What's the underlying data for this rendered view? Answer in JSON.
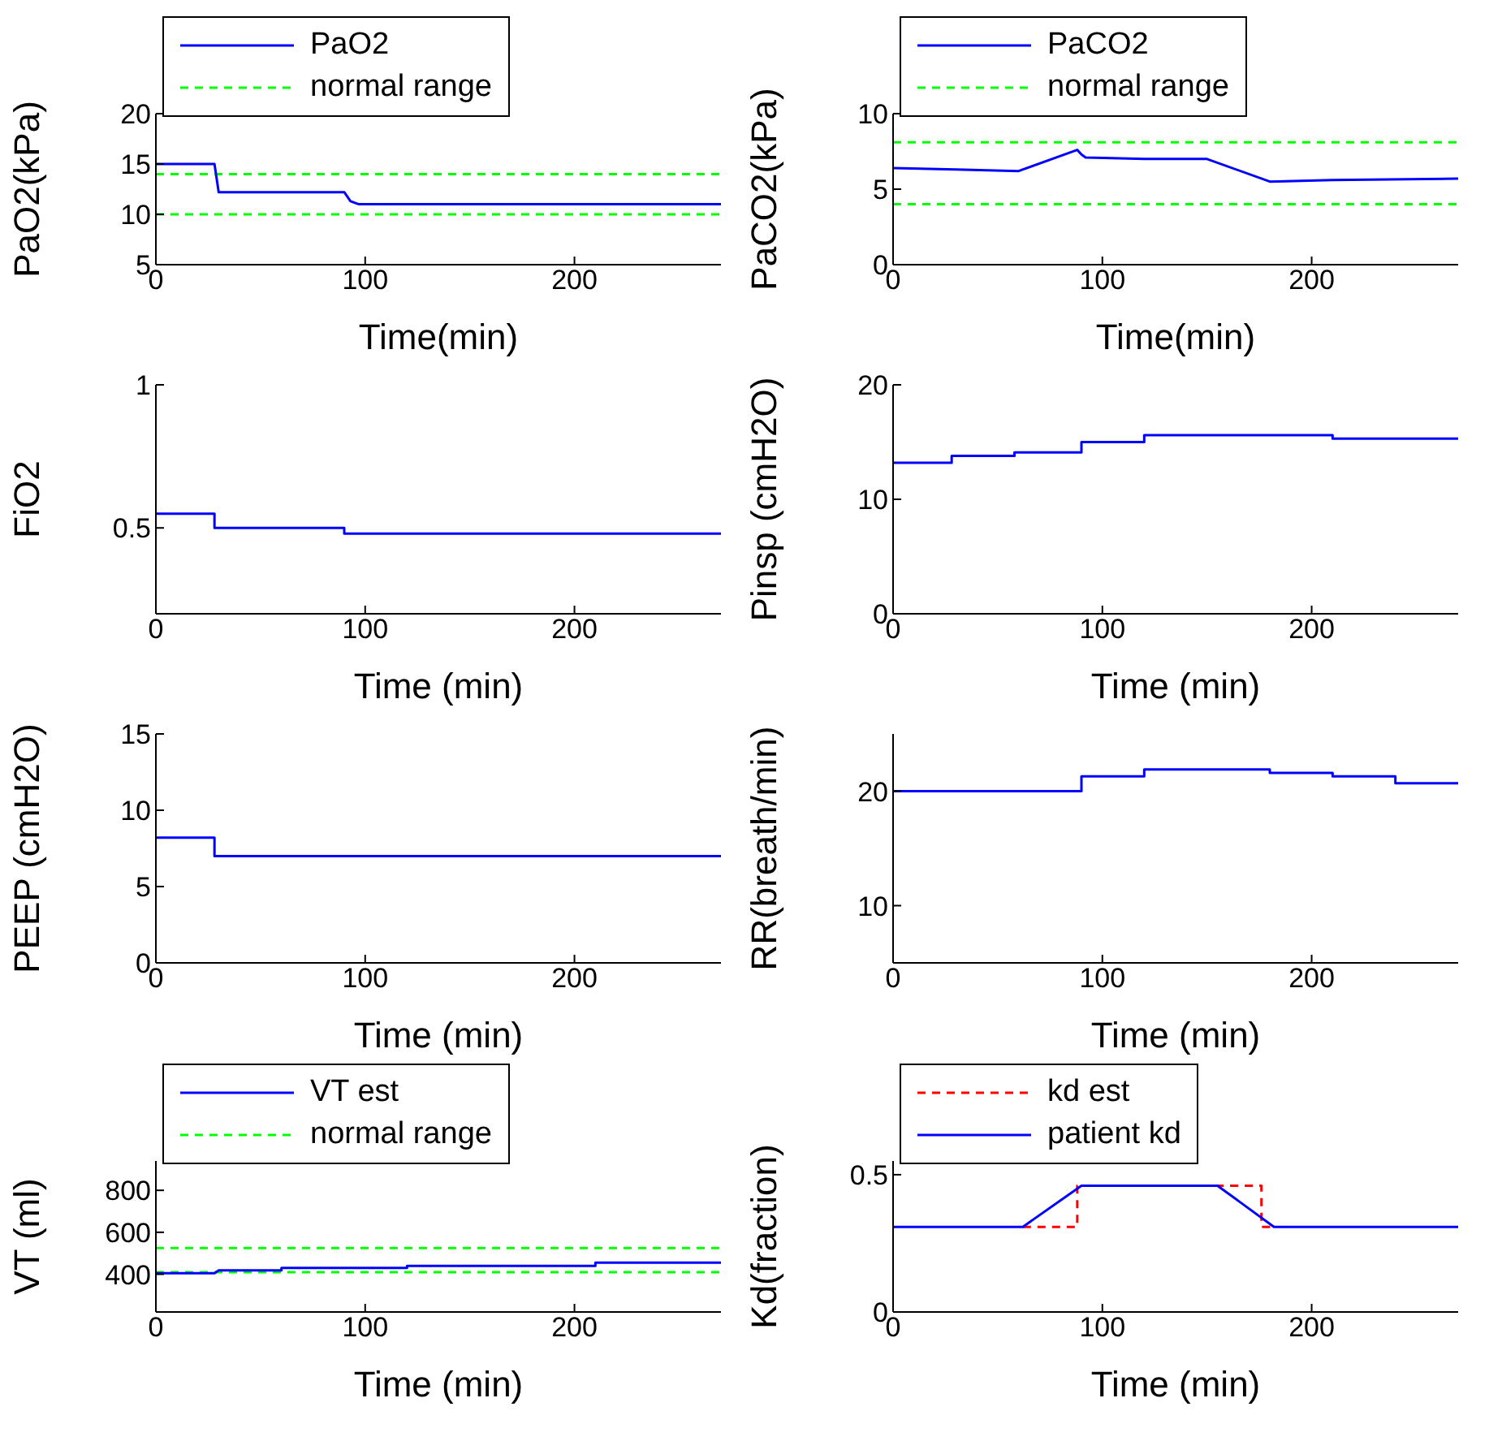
{
  "chart_data": [
    {
      "type": "line",
      "xlabel": "Time(min)",
      "ylabel": "PaO2(kPa)",
      "xlim": [
        0,
        270
      ],
      "xticks": [
        0,
        100,
        200
      ],
      "ylim": [
        5,
        20
      ],
      "yticks": [
        5,
        10,
        15,
        20
      ],
      "legend": "top left",
      "series": [
        {
          "name": "PaO2",
          "color": "#0000ff",
          "x": [
            0,
            28,
            30,
            90,
            93,
            97,
            270
          ],
          "values": [
            15,
            15,
            12.2,
            12.2,
            11.3,
            11,
            11
          ]
        }
      ],
      "ref_lines": [
        {
          "axis": "y",
          "value": 14,
          "label": "normal range",
          "color": "#00ff00",
          "line_style": "dashed"
        },
        {
          "axis": "y",
          "value": 10,
          "label": null,
          "color": "#00ff00",
          "line_style": "dashed"
        }
      ]
    },
    {
      "type": "line",
      "xlabel": "Time(min)",
      "ylabel": "PaCO2(kPa)",
      "xlim": [
        0,
        270
      ],
      "xticks": [
        0,
        100,
        200
      ],
      "ylim": [
        0,
        10
      ],
      "yticks": [
        0,
        5,
        10
      ],
      "legend": "top left",
      "series": [
        {
          "name": "PaCO2",
          "color": "#0000ff",
          "x": [
            0,
            30,
            60,
            88,
            90,
            92,
            120,
            150,
            180,
            210,
            270
          ],
          "values": [
            6.4,
            6.3,
            6.2,
            7.6,
            7.3,
            7.1,
            7.0,
            7.0,
            5.5,
            5.6,
            5.7
          ]
        }
      ],
      "ref_lines": [
        {
          "axis": "y",
          "value": 8.1,
          "label": "normal range",
          "color": "#00ff00",
          "line_style": "dashed"
        },
        {
          "axis": "y",
          "value": 4,
          "label": null,
          "color": "#00ff00",
          "line_style": "dashed"
        }
      ]
    },
    {
      "type": "line",
      "xlabel": "Time (min)",
      "ylabel": "FiO2",
      "xlim": [
        0,
        270
      ],
      "xticks": [
        0,
        100,
        200
      ],
      "ylim": [
        0.2,
        1
      ],
      "yticks": [
        0.5,
        1
      ],
      "series": [
        {
          "color": "#0000ff",
          "x": [
            0,
            28,
            28,
            90,
            90,
            270
          ],
          "values": [
            0.55,
            0.55,
            0.5,
            0.5,
            0.48,
            0.48
          ]
        }
      ]
    },
    {
      "type": "line",
      "xlabel": "Time (min)",
      "ylabel": "Pinsp (cmH2O)",
      "xlim": [
        0,
        270
      ],
      "xticks": [
        0,
        100,
        200
      ],
      "ylim": [
        0,
        20
      ],
      "yticks": [
        0,
        10,
        20
      ],
      "series": [
        {
          "color": "#0000ff",
          "x": [
            0,
            28,
            28,
            58,
            58,
            90,
            90,
            120,
            120,
            210,
            210,
            270
          ],
          "values": [
            13.2,
            13.2,
            13.8,
            13.8,
            14.1,
            14.1,
            15,
            15,
            15.6,
            15.6,
            15.3,
            15.3
          ]
        }
      ]
    },
    {
      "type": "line",
      "xlabel": "Time (min)",
      "ylabel": "PEEP (cmH2O)",
      "xlim": [
        0,
        270
      ],
      "xticks": [
        0,
        100,
        200
      ],
      "ylim": [
        0,
        15
      ],
      "yticks": [
        0,
        5,
        10,
        15
      ],
      "series": [
        {
          "color": "#0000ff",
          "x": [
            0,
            28,
            28,
            270
          ],
          "values": [
            8.2,
            8.2,
            7,
            7
          ]
        }
      ]
    },
    {
      "type": "line",
      "xlabel": "Time (min)",
      "ylabel": "RR(breath/min)",
      "xlim": [
        0,
        270
      ],
      "xticks": [
        0,
        100,
        200
      ],
      "ylim": [
        5,
        25
      ],
      "yticks": [
        10,
        20
      ],
      "series": [
        {
          "color": "#0000ff",
          "x": [
            0,
            90,
            90,
            120,
            120,
            180,
            180,
            210,
            210,
            240,
            240,
            270
          ],
          "values": [
            20,
            20,
            21.3,
            21.3,
            21.9,
            21.9,
            21.6,
            21.6,
            21.3,
            21.3,
            20.7,
            20.7
          ]
        }
      ]
    },
    {
      "type": "line",
      "xlabel": "Time (min)",
      "ylabel": "VT (ml)",
      "xlim": [
        0,
        270
      ],
      "xticks": [
        0,
        100,
        200
      ],
      "ylim": [
        220,
        940
      ],
      "yticks": [
        400,
        600,
        800
      ],
      "legend": "top left",
      "series": [
        {
          "name": "VT est",
          "color": "#0000ff",
          "x": [
            0,
            28,
            30,
            60,
            60,
            120,
            120,
            210,
            210,
            270
          ],
          "values": [
            405,
            405,
            418,
            418,
            430,
            430,
            440,
            440,
            455,
            455
          ]
        }
      ],
      "ref_lines": [
        {
          "axis": "y",
          "value": 525,
          "label": "normal range",
          "color": "#00ff00",
          "line_style": "dashed"
        },
        {
          "axis": "y",
          "value": 410,
          "label": null,
          "color": "#00ff00",
          "line_style": "dashed"
        }
      ]
    },
    {
      "type": "line",
      "xlabel": "Time (min)",
      "ylabel": "Kd(fraction)",
      "xlim": [
        0,
        270
      ],
      "xticks": [
        0,
        100,
        200
      ],
      "ylim": [
        0,
        0.55
      ],
      "yticks": [
        0,
        0.5
      ],
      "legend": "top left",
      "series": [
        {
          "name": "kd est",
          "color": "#ff0000",
          "line_style": "dashed",
          "x": [
            62,
            88,
            88,
            176,
            176,
            182
          ],
          "values": [
            0.31,
            0.31,
            0.46,
            0.46,
            0.31,
            0.31
          ]
        },
        {
          "name": "patient kd",
          "color": "#0000ff",
          "x": [
            0,
            62,
            90,
            155,
            182,
            270
          ],
          "values": [
            0.31,
            0.31,
            0.46,
            0.46,
            0.31,
            0.31
          ]
        }
      ]
    }
  ]
}
